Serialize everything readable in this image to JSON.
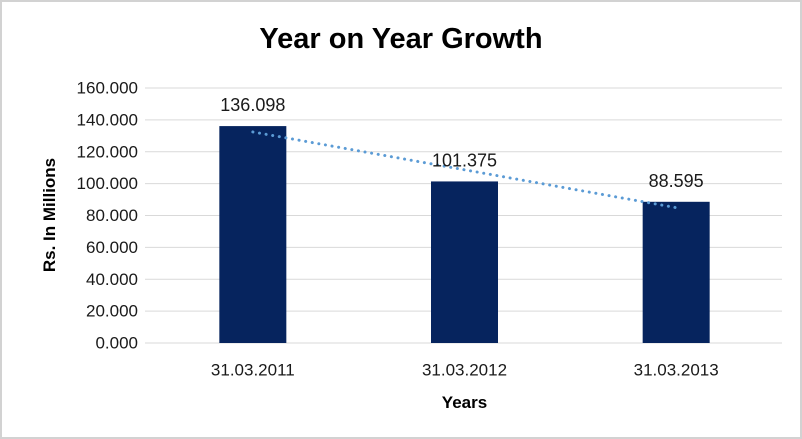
{
  "chart": {
    "title": "Year on Year Growth",
    "y_axis_title": "Rs. In Millions",
    "x_axis_title": "Years"
  },
  "chart_data": {
    "type": "bar",
    "title": "Year on Year Growth",
    "categories": [
      "31.03.2011",
      "31.03.2012",
      "31.03.2013"
    ],
    "values": [
      136.098,
      101.375,
      88.595
    ],
    "data_labels": [
      "136.098",
      "101.375",
      "88.595"
    ],
    "xlabel": "Years",
    "ylabel": "Rs. In Millions",
    "ylim": [
      0,
      160
    ],
    "ytick_step": 20,
    "ytick_labels": [
      "0.000",
      "20.000",
      "40.000",
      "60.000",
      "80.000",
      "100.000",
      "120.000",
      "140.000",
      "160.000"
    ],
    "grid": true,
    "legend": "none",
    "bar_color": "#06245E",
    "gridline_color": "#D9D9D9",
    "label_color": "#1A1A1A",
    "trendline": {
      "type": "linear",
      "style": "dotted",
      "color": "#5B9BD5"
    }
  }
}
